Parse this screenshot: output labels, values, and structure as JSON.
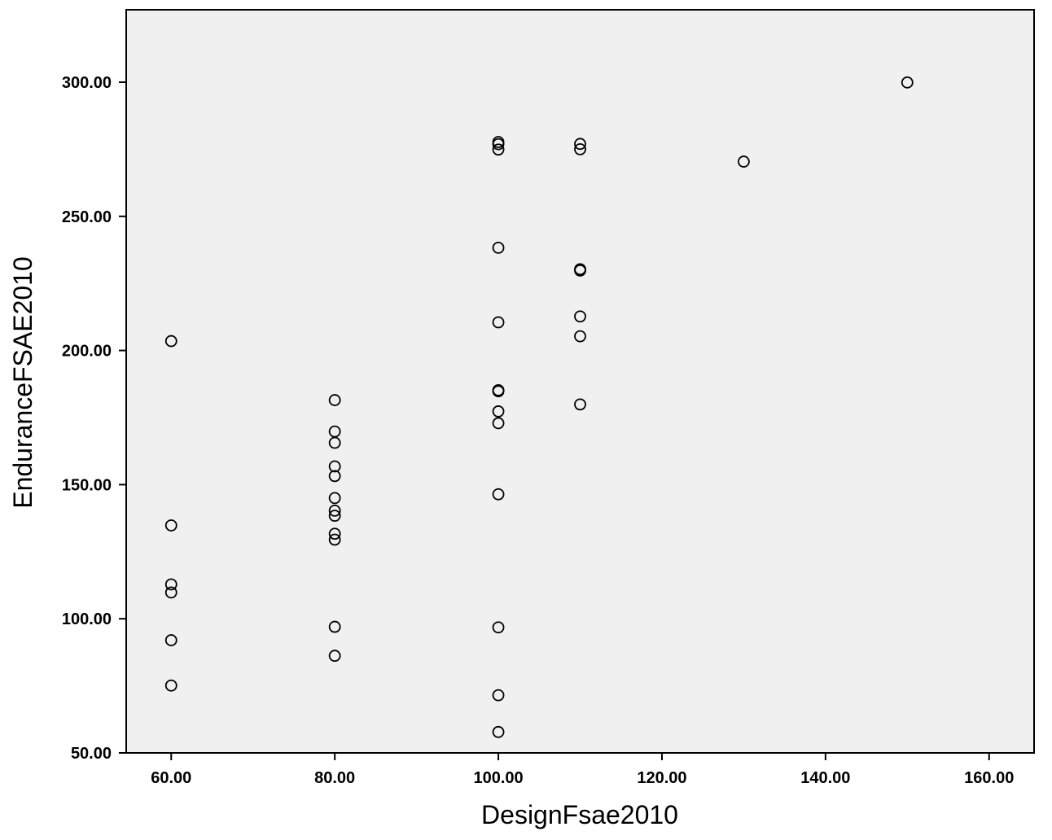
{
  "chart_data": {
    "type": "scatter",
    "title": "",
    "xlabel": "DesignFsae2010",
    "ylabel": "EnduranceFSAE2010",
    "xlim": [
      54.5,
      165.5
    ],
    "ylim": [
      50,
      327
    ],
    "x_ticks": [
      60,
      80,
      100,
      120,
      140,
      160
    ],
    "y_ticks": [
      50,
      100,
      150,
      200,
      250,
      300
    ],
    "x_tick_labels": [
      "60.00",
      "80.00",
      "100.00",
      "120.00",
      "140.00",
      "160.00"
    ],
    "y_tick_labels": [
      "50.00",
      "100.00",
      "150.00",
      "200.00",
      "250.00",
      "300.00"
    ],
    "grid": false,
    "legend": "none",
    "colors": {
      "plot_background": "#f0f0f0",
      "marker_stroke": "#000000",
      "frame": "#000000"
    },
    "points": [
      {
        "x": 60,
        "y": 203.5
      },
      {
        "x": 60,
        "y": 134.8
      },
      {
        "x": 60,
        "y": 112.8
      },
      {
        "x": 60,
        "y": 109.8
      },
      {
        "x": 60,
        "y": 92.0
      },
      {
        "x": 60,
        "y": 75.1
      },
      {
        "x": 80,
        "y": 181.5
      },
      {
        "x": 80,
        "y": 169.8
      },
      {
        "x": 80,
        "y": 165.6
      },
      {
        "x": 80,
        "y": 156.8
      },
      {
        "x": 80,
        "y": 153.2
      },
      {
        "x": 80,
        "y": 145.0
      },
      {
        "x": 80,
        "y": 140.3
      },
      {
        "x": 80,
        "y": 138.4
      },
      {
        "x": 80,
        "y": 131.7
      },
      {
        "x": 80,
        "y": 129.5
      },
      {
        "x": 80,
        "y": 97.0
      },
      {
        "x": 80,
        "y": 86.2
      },
      {
        "x": 100,
        "y": 277.7
      },
      {
        "x": 100,
        "y": 276.9
      },
      {
        "x": 100,
        "y": 274.9
      },
      {
        "x": 100,
        "y": 238.3
      },
      {
        "x": 100,
        "y": 210.5
      },
      {
        "x": 100,
        "y": 185.2
      },
      {
        "x": 100,
        "y": 184.8
      },
      {
        "x": 100,
        "y": 177.3
      },
      {
        "x": 100,
        "y": 172.9
      },
      {
        "x": 100,
        "y": 146.4
      },
      {
        "x": 100,
        "y": 96.8
      },
      {
        "x": 100,
        "y": 71.5
      },
      {
        "x": 100,
        "y": 57.8
      },
      {
        "x": 110,
        "y": 277.0
      },
      {
        "x": 110,
        "y": 275.0
      },
      {
        "x": 110,
        "y": 230.3
      },
      {
        "x": 110,
        "y": 229.8
      },
      {
        "x": 110,
        "y": 212.7
      },
      {
        "x": 110,
        "y": 205.3
      },
      {
        "x": 110,
        "y": 179.9
      },
      {
        "x": 130,
        "y": 270.4
      },
      {
        "x": 150,
        "y": 299.9
      }
    ]
  }
}
